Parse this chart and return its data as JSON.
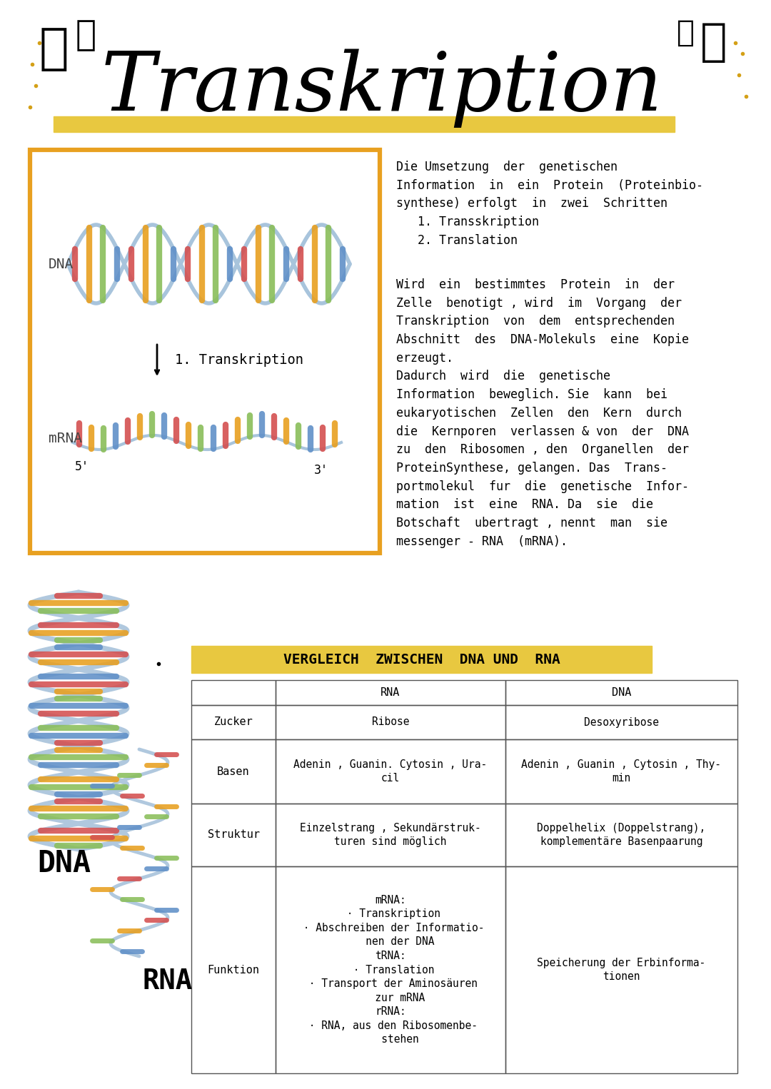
{
  "title": "Transkription",
  "title_underline_color": "#E8C840",
  "background_color": "#FFFFFF",
  "right_text_1": "Die Umsetzung  der  genetischen\nInformation  in  ein  Protein  (Proteinbio-\nsynthese) erfolgt  in  zwei  Schritten\n   1. Transskription\n   2. Translation",
  "right_text_2": "Wird  ein  bestimmtes  Protein  in  der\nZelle  benotigt , wird  im  Vorgang  der\nTranskription  von  dem  entsprechenden\nAbschnitt  des  DNA-Molekuls  eine  Kopie\nerzeugt.\nDadurch  wird  die  genetische\nInformation  beweglich. Sie  kann  bei\neukaryotischen  Zellen  den  Kern  durch\ndie  Kernporen  verlassen & von  der  DNA\nzu  den  Ribosomen , den  Organellen  der\nProteinSynthese, gelangen. Das  Trans-\nportmolekul  fur  die  genetische  Infor-\nmation  ist  eine  RNA. Da  sie  die\nBotschaft  ubertragt , nennt  man  sie\nmessenger - RNA  (mRNA).",
  "box_color": "#E8A020",
  "label_transkription": "1. Transkription",
  "label_dna": "DNA",
  "label_mrna": "mRNA",
  "label_5prime": "5'",
  "label_3prime": "3'",
  "comparison_title": "VERGLEICH  ZWISCHEN  DNA UND  RNA",
  "comparison_title_bg": "#E8C840",
  "table_header_row": [
    "",
    "RNA",
    "DNA"
  ],
  "table_rows": [
    [
      "Zucker",
      "Ribose",
      "Desoxyribose"
    ],
    [
      "Basen",
      "Adenin , Guanin. Cytosin , Ura-\ncil",
      "Adenin , Guanin , Cytosin , Thy-\nmin"
    ],
    [
      "Struktur",
      "Einzelstrang , Sekundärstruk-\nturen sind möglich",
      "Doppelhelix (Doppelstrang),\nkomplementäre Basenpaarung"
    ],
    [
      "Funktion",
      "mRNA:\n · Transkription\n · Abschreiben der Informatio-\n   nen der DNA\ntRNA:\n · Translation\n · Transport der Aminosäuren\n   zur mRNA\nrRNA:\n · RNA, aus den Ribosomenbe-\n   stehen",
      "Speicherung der Erbinforma-\ntionen"
    ]
  ],
  "label_dna_bottom": "DNA",
  "label_rna_bottom": "RNA",
  "strand_color_box": "#a8c4dc",
  "strand_color_left": "#b0c8de",
  "bar_colors": [
    "#d45050",
    "#e8a020",
    "#8abe5a",
    "#6090c8"
  ],
  "bar_colors_rna": [
    "#d45050",
    "#e8a020",
    "#8abe5a",
    "#6090c8"
  ]
}
